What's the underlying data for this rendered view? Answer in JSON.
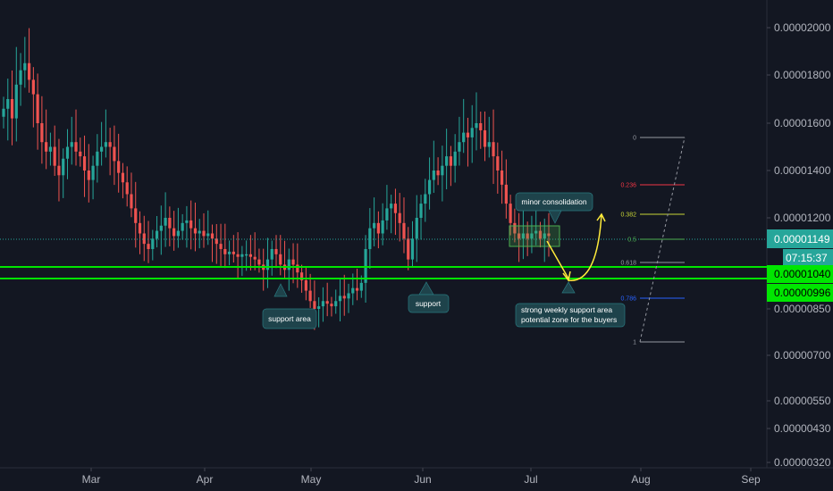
{
  "chart_data": {
    "type": "candlestick",
    "x_labels": [
      "Mar",
      "Apr",
      "May",
      "Jun",
      "Jul",
      "Aug",
      "Sep"
    ],
    "y_ticks": [
      "0.00002000",
      "0.00001800",
      "0.00001600",
      "0.00001400",
      "0.00001200",
      "0.00000850",
      "0.00000700",
      "0.00000550",
      "0.00000430",
      "0.00000320"
    ],
    "y_tick_values": [
      2e-05,
      1.8e-05,
      1.6e-05,
      1.4e-05,
      1.2e-05,
      8.5e-06,
      7e-06,
      5.5e-06,
      4.3e-06,
      3.2e-06
    ],
    "last_price": {
      "value": "0.00001149",
      "countdown": "07:15:37"
    },
    "support_zone": {
      "top": "0.00001040",
      "bottom": "0.00000996"
    },
    "fib_levels": [
      {
        "label": "0",
        "color": "#9598a1"
      },
      {
        "label": "0.236",
        "color": "#f23645"
      },
      {
        "label": "0.382",
        "color": "#c8d435"
      },
      {
        "label": "0.5",
        "color": "#4caf50"
      },
      {
        "label": "0.618",
        "color": "#9598a1"
      },
      {
        "label": "0.786",
        "color": "#2962ff"
      },
      {
        "label": "1",
        "color": "#9598a1"
      }
    ],
    "annotations": {
      "support_area": "support area",
      "support": "support",
      "minor_consolidation": "minor consolidation",
      "strong_support_line1": "strong weekly support area",
      "strong_support_line2": "potential zone for the buyers"
    },
    "ohlc_close_path": [
      1.66e-05,
      1.7e-05,
      1.62e-05,
      1.76e-05,
      1.82e-05,
      1.85e-05,
      1.78e-05,
      1.72e-05,
      1.6e-05,
      1.52e-05,
      1.48e-05,
      1.5e-05,
      1.42e-05,
      1.38e-05,
      1.45e-05,
      1.5e-05,
      1.52e-05,
      1.48e-05,
      1.46e-05,
      1.4e-05,
      1.36e-05,
      1.42e-05,
      1.48e-05,
      1.5e-05,
      1.52e-05,
      1.5e-05,
      1.44e-05,
      1.39e-05,
      1.35e-05,
      1.3e-05,
      1.24e-05,
      1.18e-05,
      1.14e-05,
      1.1e-05,
      1.08e-05,
      1.12e-05,
      1.15e-05,
      1.17e-05,
      1.2e-05,
      1.16e-05,
      1.13e-05,
      1.15e-05,
      1.18e-05,
      1.19e-05,
      1.16e-05,
      1.14e-05,
      1.15e-05,
      1.13e-05,
      1.14e-05,
      1.12e-05,
      1.1e-05,
      1.08e-05,
      1.06e-05,
      1.07e-05,
      1.06e-05,
      1.05e-05,
      1.06e-05,
      1.06e-05,
      1.05e-05,
      1.04e-05,
      1.02e-05,
      1e-05,
      1.04e-05,
      1.08e-05,
      1.06e-05,
      1.02e-05,
      1e-05,
      1.04e-05,
      1.02e-05,
      9.9e-06,
      9.6e-06,
      9.2e-06,
      8.8e-06,
      8.5e-06,
      8.6e-06,
      8.8e-06,
      8.7e-06,
      8.6e-06,
      8.8e-06,
      9e-06,
      8.9e-06,
      9.1e-06,
      9.3e-06,
      9.2e-06,
      9.5e-06,
      1.08e-05,
      1.16e-05,
      1.18e-05,
      1.14e-05,
      1.19e-05,
      1.24e-05,
      1.26e-05,
      1.22e-05,
      1.18e-05,
      1.12e-05,
      1.04e-05,
      1.12e-05,
      1.2e-05,
      1.26e-05,
      1.3e-05,
      1.36e-05,
      1.4e-05,
      1.38e-05,
      1.42e-05,
      1.46e-05,
      1.42e-05,
      1.48e-05,
      1.52e-05,
      1.56e-05,
      1.54e-05,
      1.58e-05,
      1.6e-05,
      1.57e-05,
      1.5e-05,
      1.52e-05,
      1.46e-05,
      1.4e-05,
      1.34e-05,
      1.26e-05,
      1.18e-05,
      1.14e-05,
      1.12e-05,
      1.14e-05,
      1.12e-05,
      1.14e-05,
      1.15e-05,
      1.12e-05,
      1.14e-05,
      1.13e-05
    ]
  }
}
